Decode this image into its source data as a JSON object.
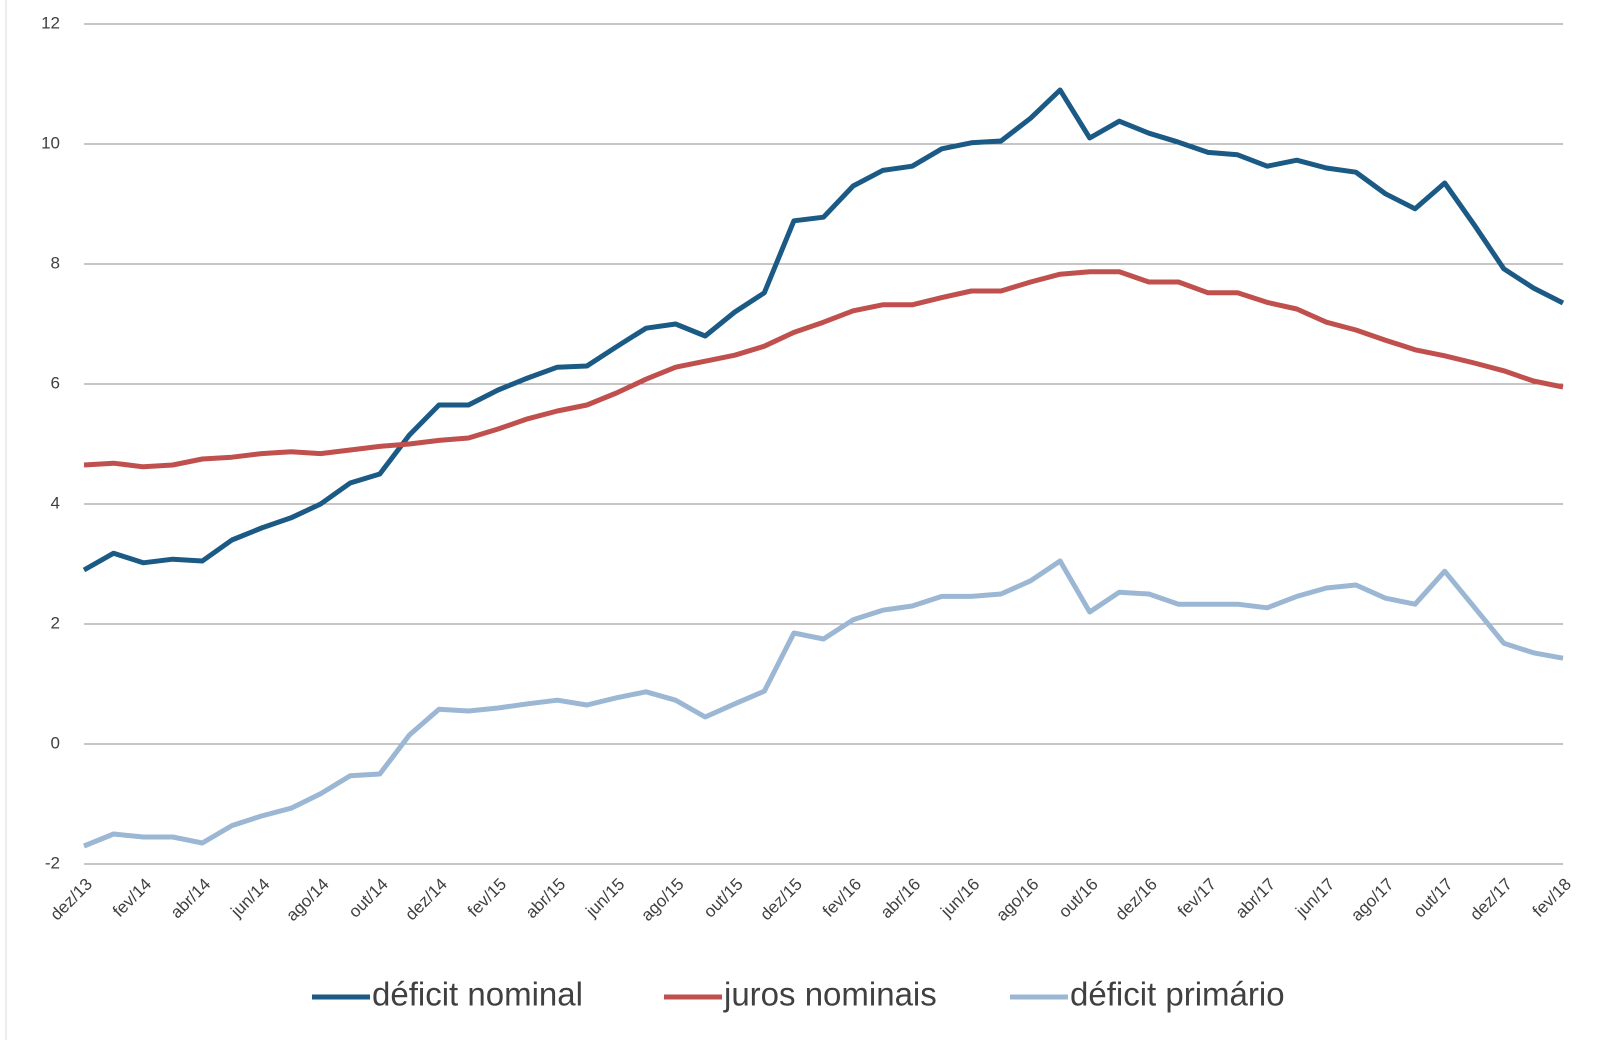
{
  "chart_data": {
    "type": "line",
    "categories": [
      "dez/13",
      null,
      "fev/14",
      null,
      "abr/14",
      null,
      "jun/14",
      null,
      "ago/14",
      null,
      "out/14",
      null,
      "dez/14",
      null,
      "fev/15",
      null,
      "abr/15",
      null,
      "jun/15",
      null,
      "ago/15",
      null,
      "out/15",
      null,
      "dez/15",
      null,
      "fev/16",
      null,
      "abr/16",
      null,
      "jun/16",
      null,
      "ago/16",
      null,
      "out/16",
      null,
      "dez/16",
      null,
      "fev/17",
      null,
      "abr/17",
      null,
      "jun/17",
      null,
      "ago/17",
      null,
      "out/17",
      null,
      "dez/17",
      null,
      "fev/18"
    ],
    "series": [
      {
        "name": "déficit nominal",
        "color": "#1b5a84",
        "values": [
          2.9,
          3.18,
          3.02,
          3.08,
          3.05,
          3.4,
          3.6,
          3.77,
          4.0,
          4.35,
          4.5,
          5.15,
          5.65,
          5.65,
          5.9,
          6.1,
          6.28,
          6.3,
          6.62,
          6.93,
          7.0,
          6.8,
          7.2,
          7.52,
          8.72,
          8.78,
          9.3,
          9.56,
          9.63,
          9.92,
          10.02,
          10.05,
          10.43,
          10.9,
          10.1,
          10.38,
          10.18,
          10.03,
          9.86,
          9.82,
          9.63,
          9.73,
          9.6,
          9.53,
          9.17,
          8.92,
          9.35,
          8.65,
          7.92,
          7.6,
          7.35
        ]
      },
      {
        "name": "juros nominais",
        "color": "#c0504d",
        "values": [
          4.65,
          4.68,
          4.62,
          4.65,
          4.75,
          4.78,
          4.84,
          4.87,
          4.84,
          4.9,
          4.96,
          5.0,
          5.06,
          5.1,
          5.25,
          5.42,
          5.55,
          5.65,
          5.85,
          6.08,
          6.28,
          6.38,
          6.48,
          6.63,
          6.86,
          7.03,
          7.22,
          7.32,
          7.32,
          7.44,
          7.55,
          7.55,
          7.7,
          7.83,
          7.87,
          7.87,
          7.7,
          7.7,
          7.52,
          7.52,
          7.36,
          7.25,
          7.03,
          6.9,
          6.73,
          6.57,
          6.47,
          6.35,
          6.22,
          6.05,
          5.95
        ]
      },
      {
        "name": "déficit primário",
        "color": "#9bb7d4",
        "values": [
          -1.7,
          -1.5,
          -1.55,
          -1.55,
          -1.65,
          -1.36,
          -1.2,
          -1.07,
          -0.83,
          -0.53,
          -0.5,
          0.15,
          0.58,
          0.55,
          0.6,
          0.67,
          0.73,
          0.65,
          0.77,
          0.87,
          0.73,
          0.45,
          0.67,
          0.88,
          1.85,
          1.75,
          2.07,
          2.23,
          2.3,
          2.46,
          2.46,
          2.5,
          2.72,
          3.05,
          2.2,
          2.53,
          2.5,
          2.33,
          2.33,
          2.33,
          2.27,
          2.46,
          2.6,
          2.65,
          2.43,
          2.33,
          2.88,
          2.28,
          1.68,
          1.52,
          1.43
        ]
      }
    ],
    "ylim": [
      -2,
      12
    ],
    "yticks": [
      -2,
      0,
      2,
      4,
      6,
      8,
      10,
      12
    ],
    "grid": true,
    "legend": "bottom"
  }
}
